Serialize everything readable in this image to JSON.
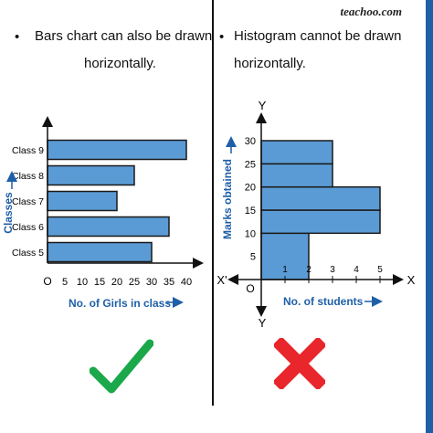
{
  "watermark": "teachoo.com",
  "left_panel": {
    "bullet_line1": "Bars chart can also be drawn",
    "bullet_line2": "horizontally.",
    "verdict": "check"
  },
  "right_panel": {
    "bullet_line1": "Histogram cannot be drawn",
    "bullet_line2": "horizontally.",
    "verdict": "cross"
  },
  "colors": {
    "bar_fill": "#5b9bd5",
    "bar_stroke": "#1a1a1a",
    "label_blue": "#1f5fa8",
    "check_green": "#1aa84a",
    "cross_red": "#e8262b",
    "edge_blue": "#1f5fa8"
  },
  "chart_data": [
    {
      "type": "bar",
      "orientation": "horizontal",
      "categories": [
        "Class 5",
        "Class 6",
        "Class 7",
        "Class 8",
        "Class 9"
      ],
      "values": [
        30,
        35,
        20,
        25,
        40
      ],
      "xlabel": "No. of Girls in class",
      "ylabel": "Classes",
      "origin_label": "O",
      "xlim": [
        0,
        40
      ],
      "xticks": [
        5,
        10,
        15,
        20,
        25,
        30,
        35,
        40
      ]
    },
    {
      "type": "bar",
      "orientation": "horizontal",
      "bins": [
        [
          0,
          10
        ],
        [
          10,
          15
        ],
        [
          15,
          20
        ],
        [
          20,
          25
        ],
        [
          25,
          30
        ]
      ],
      "values": [
        2,
        5,
        5,
        3,
        3
      ],
      "xlabel": "No. of students",
      "ylabel": "Marks obtained",
      "origin_label": "O",
      "axis_labels": {
        "x_pos": "X",
        "x_neg": "X'",
        "y_pos": "Y",
        "y_neg": "Y"
      },
      "xlim": [
        0,
        5
      ],
      "ylim": [
        0,
        30
      ],
      "xticks": [
        1,
        2,
        3,
        4,
        5
      ],
      "yticks": [
        5,
        10,
        15,
        20,
        25,
        30
      ]
    }
  ]
}
